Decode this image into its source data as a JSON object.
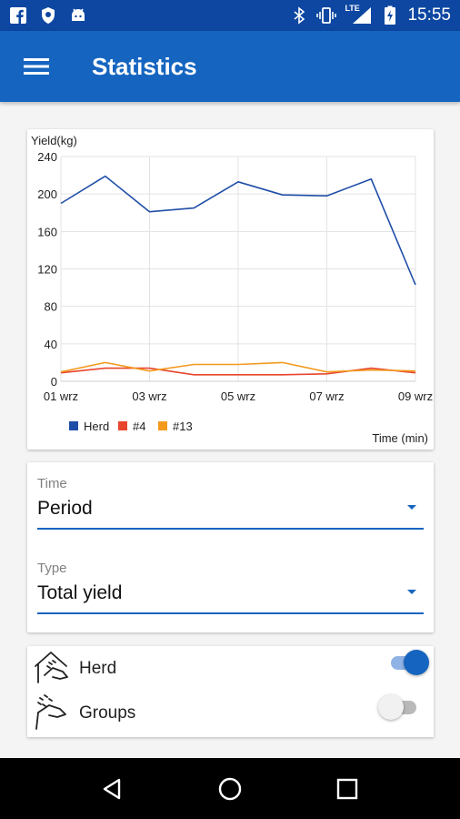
{
  "status_bar": {
    "time": "15:55",
    "network": "LTE",
    "left_icons": [
      "facebook-icon",
      "shield-icon",
      "android-icon"
    ],
    "right_icons": [
      "bluetooth-icon",
      "vibrate-icon",
      "signal-icon",
      "battery-icon"
    ]
  },
  "app_bar": {
    "title": "Statistics",
    "menu_icon": "hamburger-menu-icon"
  },
  "chart_data": {
    "type": "line",
    "ylabel": "Yield(kg)",
    "xlabel": "Time (min)",
    "x": [
      "01 wrz",
      "02 wrz",
      "03 wrz",
      "04 wrz",
      "05 wrz",
      "06 wrz",
      "07 wrz",
      "08 wrz",
      "09 wrz"
    ],
    "x_tick_labels": [
      "01 wrz",
      "03 wrz",
      "05 wrz",
      "07 wrz",
      "09 wrz"
    ],
    "y_ticks": [
      0,
      40,
      80,
      120,
      160,
      200,
      240
    ],
    "ylim": [
      0,
      240
    ],
    "grid": true,
    "legend_position": "bottom-left",
    "series": [
      {
        "name": "Herd",
        "color": "#1f4ea8",
        "values": [
          190,
          219,
          181,
          185,
          213,
          199,
          198,
          216,
          103
        ]
      },
      {
        "name": "#4",
        "color": "#e8452f",
        "values": [
          9,
          14,
          14,
          7,
          7,
          7,
          8,
          14,
          9
        ]
      },
      {
        "name": "#13",
        "color": "#f39a1e",
        "values": [
          10,
          20,
          11,
          18,
          18,
          20,
          10,
          12,
          11
        ]
      }
    ]
  },
  "form": {
    "time": {
      "label": "Time",
      "value": "Period"
    },
    "type": {
      "label": "Type",
      "value": "Total yield"
    }
  },
  "filters": [
    {
      "label": "Herd",
      "icon": "herd-hand-icon",
      "enabled": true
    },
    {
      "label": "Groups",
      "icon": "groups-hand-icon",
      "enabled": false
    }
  ],
  "colors": {
    "accent": "#1565c0",
    "status_bar": "#0d47a1"
  },
  "nav_bar": {
    "buttons": [
      "back-icon",
      "home-icon",
      "recents-icon"
    ]
  }
}
